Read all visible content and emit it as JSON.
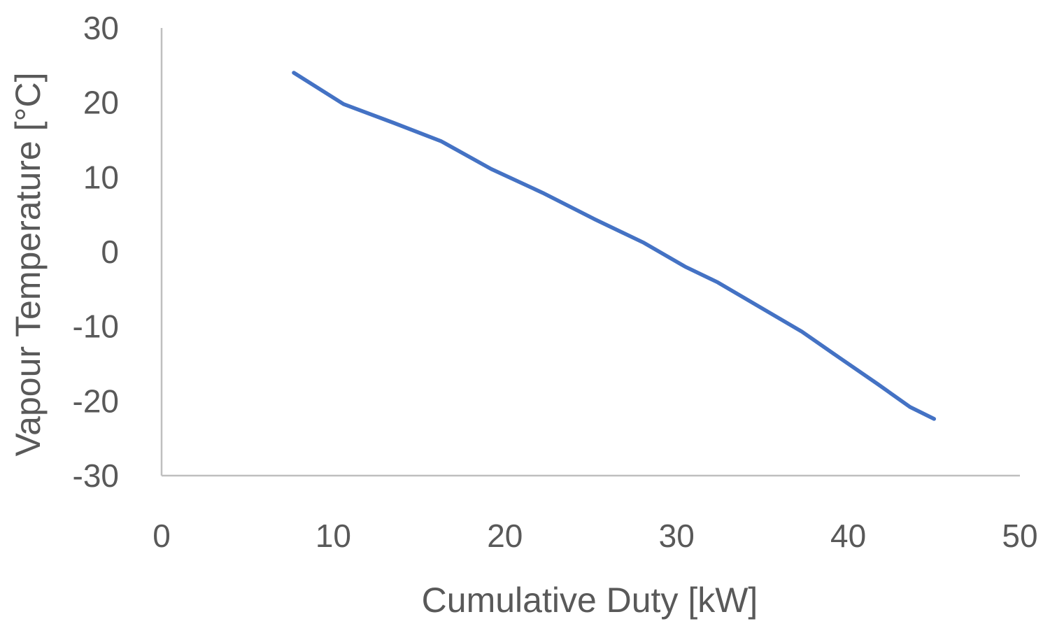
{
  "chart_data": {
    "type": "line",
    "title": "",
    "xlabel": "Cumulative Duty [kW]",
    "ylabel": "Vapour Temperature [°C]",
    "xlim": [
      0,
      50
    ],
    "ylim": [
      -30,
      30
    ],
    "x_ticks": [
      "0",
      "10",
      "20",
      "30",
      "40",
      "50"
    ],
    "y_ticks": [
      "30",
      "20",
      "10",
      "0",
      "-10",
      "-20",
      "-30"
    ],
    "grid": false,
    "legend": "none",
    "series": [
      {
        "color": "#4472c4",
        "x": [
          7.7,
          10.6,
          13.5,
          16.3,
          19.2,
          22.2,
          25.2,
          28.1,
          30.5,
          32.4,
          35.0,
          37.3,
          39.3,
          41.7,
          43.6,
          45.0
        ],
        "y": [
          24.0,
          19.8,
          17.3,
          14.8,
          11.1,
          7.9,
          4.4,
          1.2,
          -2.0,
          -4.1,
          -7.6,
          -10.7,
          -13.9,
          -17.7,
          -20.8,
          -22.4
        ]
      }
    ]
  }
}
